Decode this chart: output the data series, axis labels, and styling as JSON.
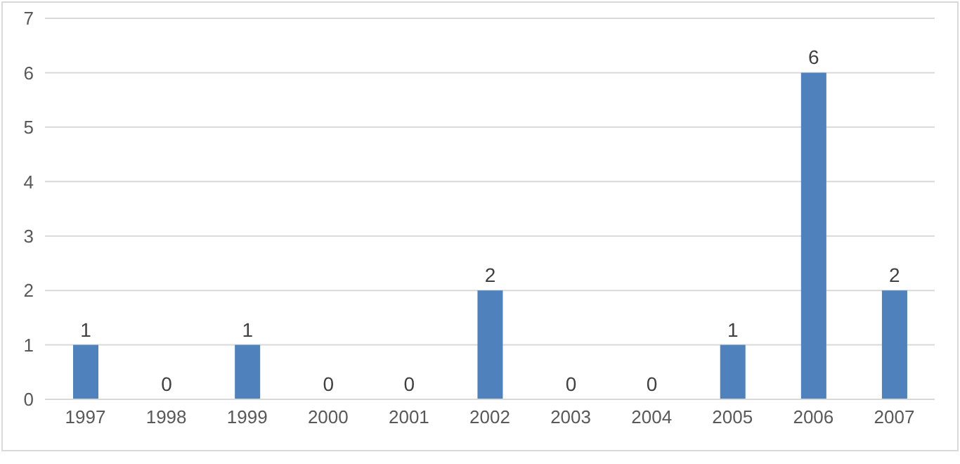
{
  "chart_data": {
    "type": "bar",
    "categories": [
      "1997",
      "1998",
      "1999",
      "2000",
      "2001",
      "2002",
      "2003",
      "2004",
      "2005",
      "2006",
      "2007"
    ],
    "values": [
      1,
      0,
      1,
      0,
      0,
      2,
      0,
      0,
      1,
      6,
      2
    ],
    "color": "#4f81bd",
    "ylim": [
      0,
      7
    ],
    "yticks": [
      0,
      1,
      2,
      3,
      4,
      5,
      6,
      7
    ],
    "grid": "y",
    "data_labels": true,
    "legend": false
  }
}
